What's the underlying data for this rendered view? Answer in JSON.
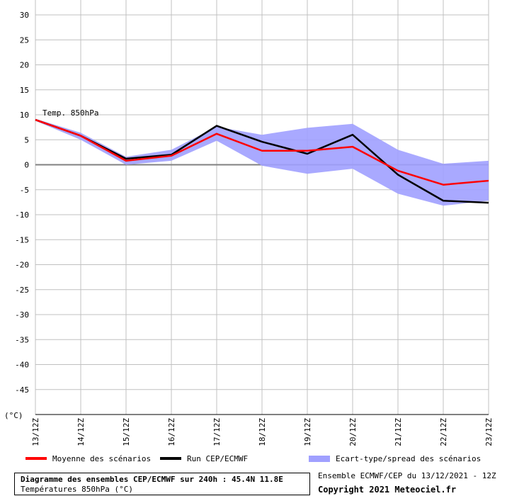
{
  "chart_data": {
    "type": "line",
    "title": "Diagramme des ensembles CEP/ECMWF sur 240h : 45.4N 11.8E",
    "subtitle": "Températures 850hPa (°C)",
    "annotation": "Temp. 850hPa",
    "ylabel": "(°C)",
    "ylim": [
      -50,
      30
    ],
    "yticks": [
      30,
      25,
      20,
      15,
      10,
      5,
      0,
      -5,
      -10,
      -15,
      -20,
      -25,
      -30,
      -35,
      -40,
      -45
    ],
    "grid": true,
    "categories": [
      "13/12Z",
      "14/12Z",
      "15/12Z",
      "16/12Z",
      "17/12Z",
      "18/12Z",
      "19/12Z",
      "20/12Z",
      "21/12Z",
      "22/12Z",
      "23/12Z"
    ],
    "x": [
      0,
      1,
      2,
      3,
      4,
      5,
      6,
      7,
      8,
      9,
      10
    ],
    "series": [
      {
        "name": "Moyenne des scénarios",
        "color": "#ff0000",
        "values": [
          9.0,
          5.8,
          0.8,
          1.8,
          6.2,
          2.8,
          2.8,
          3.6,
          -1.2,
          -4.0,
          -3.2
        ]
      },
      {
        "name": "Run CEP/ECMWF",
        "color": "#000000",
        "values": [
          9.0,
          5.8,
          1.2,
          2.0,
          7.8,
          4.6,
          2.2,
          6.0,
          -2.0,
          -7.2,
          -7.6
        ]
      }
    ],
    "band": {
      "name": "Ecart-type/spread des scénarios",
      "color": "#a0a0ff",
      "upper": [
        9.2,
        6.4,
        1.6,
        3.0,
        7.6,
        6.0,
        7.4,
        8.2,
        3.0,
        0.2,
        0.8
      ],
      "lower": [
        8.8,
        5.0,
        0.0,
        0.8,
        4.8,
        -0.2,
        -1.8,
        -0.8,
        -5.8,
        -8.2,
        -7.2
      ]
    },
    "legend_position": "bottom"
  },
  "footer": {
    "run_info": "Ensemble ECMWF/CEP du 13/12/2021 - 12Z",
    "copyright": "Copyright 2021 Meteociel.fr"
  }
}
